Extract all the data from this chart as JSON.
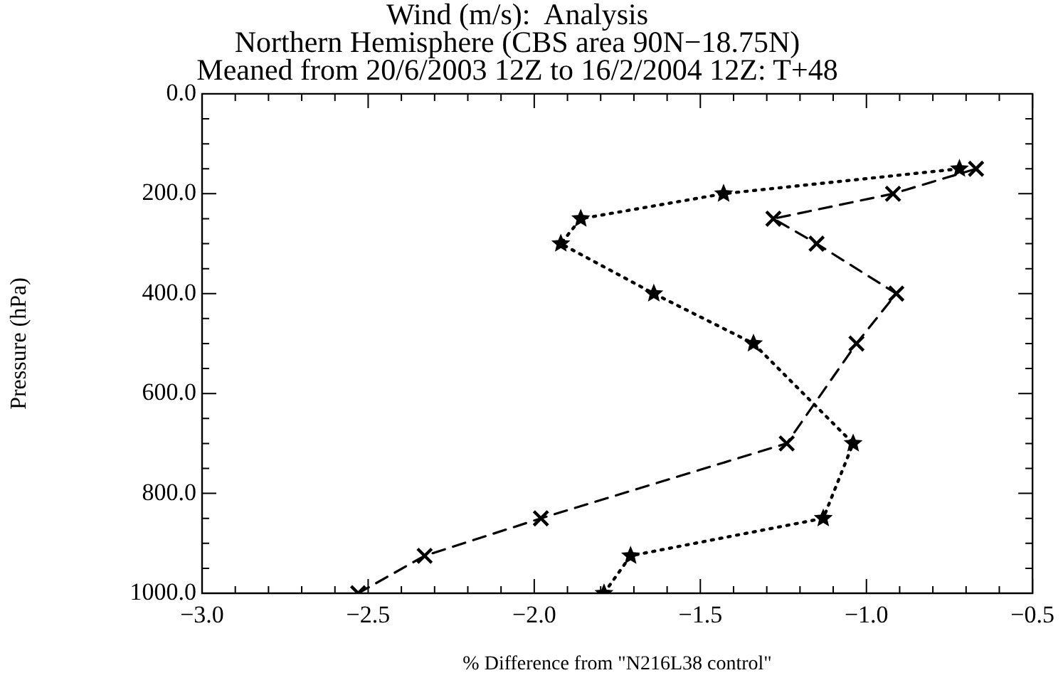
{
  "chart_data": {
    "type": "line",
    "title": "Wind (m/s):  Analysis\nNorthern Hemisphere (CBS area 90N−18.75N)\nMeaned from 20/6/2003 12Z to 16/2/2004 12Z: T+48",
    "xlabel": "% Difference from \"N216L38 control\"",
    "ylabel": "Pressure (hPa)",
    "series": [
      {
        "x": [
          -0.72,
          -1.43,
          -1.86,
          -1.92,
          -1.64,
          -1.34,
          -1.04,
          -1.13,
          -1.71,
          -1.79
        ],
        "values": [
          150,
          200,
          250,
          300,
          400,
          500,
          700,
          850,
          925,
          1000
        ],
        "color": "#000000",
        "marker": "star",
        "line_style": "dotted"
      },
      {
        "x": [
          -0.67,
          -0.92,
          -1.28,
          -1.15,
          -0.91,
          -1.03,
          -1.24,
          -1.98,
          -2.33,
          -2.53
        ],
        "values": [
          150,
          200,
          250,
          300,
          400,
          500,
          700,
          850,
          925,
          1000
        ],
        "color": "#000000",
        "marker": "cross",
        "line_style": "dashed"
      }
    ],
    "xlim": [
      -3.0,
      -0.5
    ],
    "xticks": [
      {
        "value": -3.0,
        "label": "−3.0"
      },
      {
        "value": -2.9,
        "label": null
      },
      {
        "value": -2.8,
        "label": null
      },
      {
        "value": -2.7,
        "label": null
      },
      {
        "value": -2.6,
        "label": null
      },
      {
        "value": -2.5,
        "label": "−2.5"
      },
      {
        "value": -2.4,
        "label": null
      },
      {
        "value": -2.3,
        "label": null
      },
      {
        "value": -2.2,
        "label": null
      },
      {
        "value": -2.1,
        "label": null
      },
      {
        "value": -2.0,
        "label": "−2.0"
      },
      {
        "value": -1.9,
        "label": null
      },
      {
        "value": -1.8,
        "label": null
      },
      {
        "value": -1.7,
        "label": null
      },
      {
        "value": -1.6,
        "label": null
      },
      {
        "value": -1.5,
        "label": "−1.5"
      },
      {
        "value": -1.4,
        "label": null
      },
      {
        "value": -1.3,
        "label": null
      },
      {
        "value": -1.2,
        "label": null
      },
      {
        "value": -1.1,
        "label": null
      },
      {
        "value": -1.0,
        "label": "−1.0"
      },
      {
        "value": -0.9,
        "label": null
      },
      {
        "value": -0.8,
        "label": null
      },
      {
        "value": -0.7,
        "label": null
      },
      {
        "value": -0.6,
        "label": null
      },
      {
        "value": -0.5,
        "label": "−0.5"
      }
    ],
    "ylim": [
      1000,
      0
    ],
    "yticks": [
      {
        "value": 0,
        "label": "0.0"
      },
      {
        "value": 50,
        "label": null
      },
      {
        "value": 100,
        "label": null
      },
      {
        "value": 150,
        "label": null
      },
      {
        "value": 200,
        "label": "200.0"
      },
      {
        "value": 250,
        "label": null
      },
      {
        "value": 300,
        "label": null
      },
      {
        "value": 350,
        "label": null
      },
      {
        "value": 400,
        "label": "400.0"
      },
      {
        "value": 450,
        "label": null
      },
      {
        "value": 500,
        "label": null
      },
      {
        "value": 550,
        "label": null
      },
      {
        "value": 600,
        "label": "600.0"
      },
      {
        "value": 650,
        "label": null
      },
      {
        "value": 700,
        "label": null
      },
      {
        "value": 750,
        "label": null
      },
      {
        "value": 800,
        "label": "800.0"
      },
      {
        "value": 850,
        "label": null
      },
      {
        "value": 900,
        "label": null
      },
      {
        "value": 950,
        "label": null
      },
      {
        "value": 1000,
        "label": "1000.0"
      }
    ],
    "grid": false,
    "legend": false
  }
}
